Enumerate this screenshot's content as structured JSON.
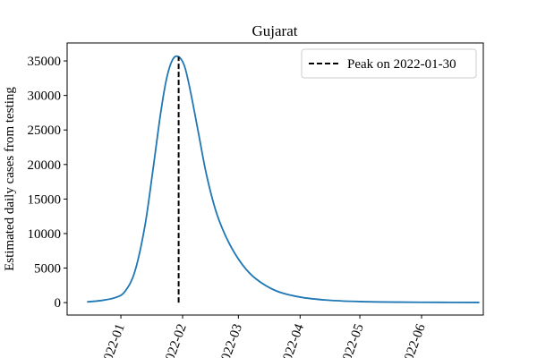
{
  "chart_data": {
    "type": "line",
    "title": "Gujarat",
    "xlabel": "",
    "ylabel": "Estimated daily cases from testing",
    "x_ticks": [
      "2022-01-01",
      "2022-02-01",
      "2022-03-01",
      "2022-04-01",
      "2022-05-01",
      "2022-06-01"
    ],
    "x_tick_labels": [
      "2022-01",
      "2022-02",
      "2022-03",
      "2022-04",
      "2022-05",
      "2022-06"
    ],
    "xlim": [
      "2021-12-05",
      "2022-07-02"
    ],
    "ylim": [
      -1800,
      37600
    ],
    "y_ticks": [
      0,
      5000,
      10000,
      15000,
      20000,
      25000,
      30000,
      35000
    ],
    "y_tick_labels": [
      "0",
      "5000",
      "10000",
      "15000",
      "20000",
      "25000",
      "30000",
      "35000"
    ],
    "grid": false,
    "legend_position": "top-right",
    "series": [
      {
        "color": "#1f77b4",
        "style": "solid",
        "x": [
          "2021-12-15",
          "2021-12-22",
          "2021-12-29",
          "2022-01-03",
          "2022-01-08",
          "2022-01-13",
          "2022-01-17",
          "2022-01-21",
          "2022-01-24",
          "2022-01-27",
          "2022-01-30",
          "2022-02-02",
          "2022-02-05",
          "2022-02-09",
          "2022-02-13",
          "2022-02-18",
          "2022-02-24",
          "2022-03-03",
          "2022-03-10",
          "2022-03-20",
          "2022-04-01",
          "2022-04-15",
          "2022-05-01",
          "2022-05-20",
          "2022-06-10",
          "2022-06-30"
        ],
        "y": [
          100,
          300,
          700,
          1600,
          4500,
          11000,
          19000,
          27500,
          32500,
          35200,
          35600,
          34200,
          30500,
          24500,
          18500,
          13000,
          8800,
          5500,
          3400,
          1700,
          800,
          350,
          150,
          70,
          40,
          20
        ]
      }
    ],
    "vline": {
      "x": "2022-01-30",
      "y0": 0,
      "y1": 35600,
      "label": "Peak on 2022-01-30",
      "color": "#000000",
      "style": "dashed"
    }
  }
}
